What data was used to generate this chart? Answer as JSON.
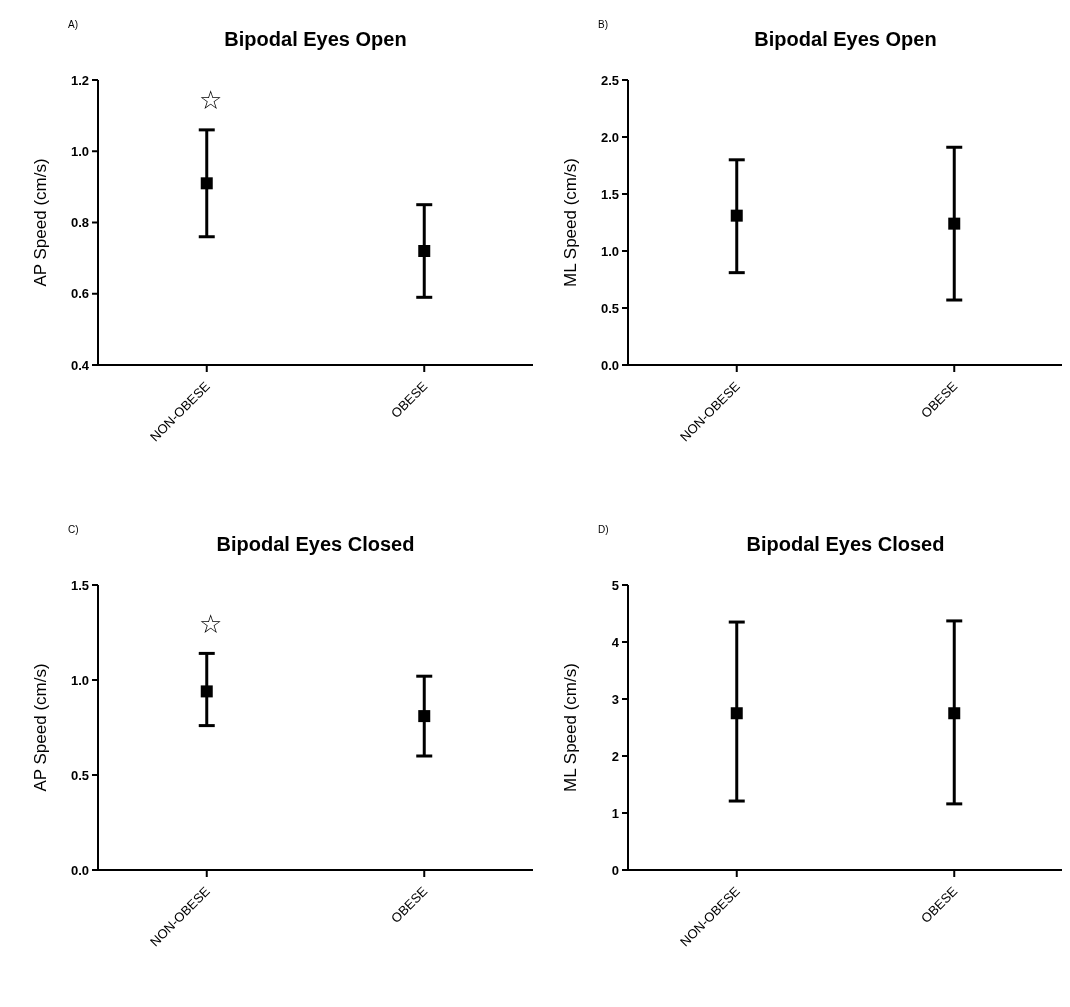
{
  "chart_data": [
    {
      "type": "scatter",
      "title": "Bipodal Eyes Open",
      "ylabel": "AP Speed (cm/s)",
      "categories": [
        "NON-OBESE",
        "OBESE"
      ],
      "ylim": [
        0.4,
        1.2
      ],
      "yticks": [
        0.4,
        0.6,
        0.8,
        {
          "value": 1,
          "label": "1.0"
        },
        1.2
      ],
      "marker": "square",
      "series": [
        {
          "color": "#000000",
          "values": [
            0.91,
            0.72
          ],
          "errors": [
            [
              0.76,
              1.06
            ],
            [
              0.59,
              0.85
            ]
          ]
        }
      ],
      "annotations": [
        "A)",
        "☆"
      ]
    },
    {
      "type": "scatter",
      "title": "Bipodal Eyes Open",
      "ylabel": "ML Speed (cm/s)",
      "categories": [
        "NON-OBESE",
        "OBESE"
      ],
      "ylim": [
        0,
        2.5
      ],
      "yticks": [
        {
          "value": 0,
          "label": "0.0"
        },
        {
          "value": 0.5,
          "label": "0.5"
        },
        {
          "value": 1,
          "label": "1.0"
        },
        {
          "value": 1.5,
          "label": "1.5"
        },
        {
          "value": 2,
          "label": "2.0"
        },
        {
          "value": 2.5,
          "label": "2.5"
        }
      ],
      "marker": "square",
      "series": [
        {
          "color": "#000000",
          "values": [
            1.31,
            1.24
          ],
          "errors": [
            [
              0.81,
              1.8
            ],
            [
              0.57,
              1.91
            ]
          ]
        }
      ],
      "annotations": [
        "B)"
      ]
    },
    {
      "type": "scatter",
      "title": "Bipodal Eyes Closed",
      "ylabel": "AP Speed (cm/s)",
      "categories": [
        "NON-OBESE",
        "OBESE"
      ],
      "ylim": [
        0,
        1.5
      ],
      "yticks": [
        {
          "value": 0,
          "label": "0.0"
        },
        {
          "value": 0.5,
          "label": "0.5"
        },
        {
          "value": 1,
          "label": "1.0"
        },
        {
          "value": 1.5,
          "label": "1.5"
        }
      ],
      "marker": "square",
      "series": [
        {
          "color": "#000000",
          "values": [
            0.94,
            0.81
          ],
          "errors": [
            [
              0.76,
              1.14
            ],
            [
              0.6,
              1.02
            ]
          ]
        }
      ],
      "annotations": [
        "C)",
        "☆"
      ]
    },
    {
      "type": "scatter",
      "title": "Bipodal Eyes Closed",
      "ylabel": "ML Speed (cm/s)",
      "categories": [
        "NON-OBESE",
        "OBESE"
      ],
      "ylim": [
        0,
        5
      ],
      "yticks": [
        0,
        1,
        2,
        3,
        4,
        5
      ],
      "marker": "square",
      "series": [
        {
          "color": "#000000",
          "values": [
            2.75,
            2.75
          ],
          "errors": [
            [
              1.21,
              4.35
            ],
            [
              1.16,
              4.37
            ]
          ]
        }
      ],
      "annotations": [
        "D)"
      ]
    }
  ]
}
